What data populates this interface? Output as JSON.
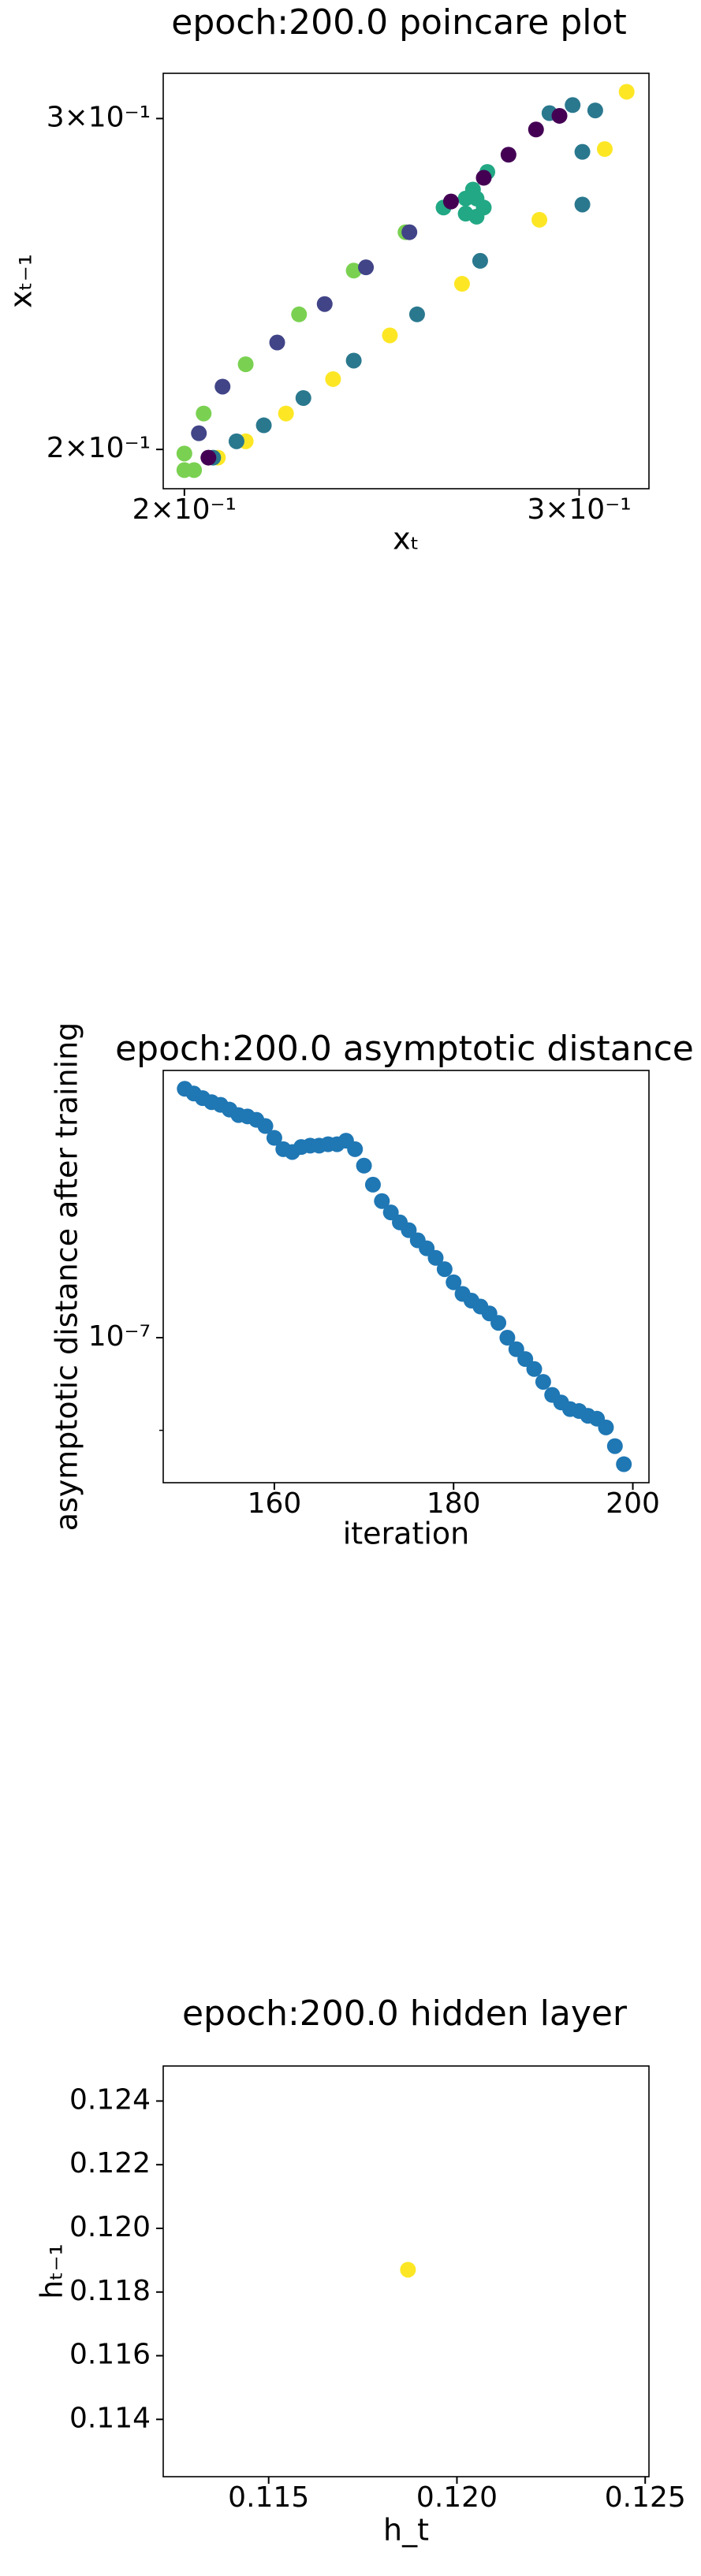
{
  "chart_data": [
    {
      "type": "scatter",
      "title": "epoch:200.0 poincare plot",
      "xlabel": "xₜ",
      "ylabel": "xₜ₋₁",
      "xscale": "log",
      "yscale": "log",
      "xlim": [
        0.1957,
        0.3223
      ],
      "ylim": [
        0.1906,
        0.3171
      ],
      "xticks": [
        {
          "value": 0.2,
          "label": "2×10⁻¹"
        },
        {
          "value": 0.3,
          "label": "3×10⁻¹"
        }
      ],
      "yticks": [
        {
          "value": 0.2,
          "label": "2×10⁻¹"
        },
        {
          "value": 0.3,
          "label": "3×10⁻¹"
        }
      ],
      "series": [
        {
          "color": "#fde725",
          "x": [
            0.315,
            0.308,
            0.288,
            0.266,
            0.247,
            0.233,
            0.222,
            0.213,
            0.207
          ],
          "values": [
            0.31,
            0.289,
            0.265,
            0.245,
            0.23,
            0.218,
            0.209,
            0.202,
            0.198
          ]
        },
        {
          "color": "#7ad151",
          "x": [
            0.202,
            0.2,
            0.2,
            0.204,
            0.213,
            0.225,
            0.238,
            0.251
          ],
          "values": [
            0.195,
            0.195,
            0.199,
            0.209,
            0.222,
            0.236,
            0.249,
            0.261
          ]
        },
        {
          "color": "#22a884",
          "x": [
            0.261,
            0.267,
            0.27,
            0.272,
            0.267,
            0.27,
            0.273,
            0.269
          ],
          "values": [
            0.269,
            0.272,
            0.272,
            0.269,
            0.267,
            0.266,
            0.281,
            0.275
          ]
        },
        {
          "color": "#2a788e",
          "x": [
            0.271,
            0.254,
            0.238,
            0.226,
            0.217,
            0.211,
            0.206,
            0.301,
            0.301,
            0.305,
            0.298,
            0.291
          ],
          "values": [
            0.252,
            0.236,
            0.223,
            0.213,
            0.206,
            0.202,
            0.198,
            0.288,
            0.27,
            0.303,
            0.305,
            0.302
          ]
        },
        {
          "color": "#414487",
          "x": [
            0.252,
            0.241,
            0.231,
            0.22,
            0.208,
            0.203
          ],
          "values": [
            0.261,
            0.25,
            0.239,
            0.228,
            0.216,
            0.204
          ]
        },
        {
          "color": "#440154",
          "x": [
            0.205,
            0.294,
            0.287,
            0.279,
            0.272,
            0.263
          ],
          "values": [
            0.198,
            0.301,
            0.296,
            0.287,
            0.279,
            0.271
          ]
        }
      ]
    },
    {
      "type": "scatter",
      "title": "epoch:200.0 asymptotic distance",
      "xlabel": "iteration",
      "ylabel": "asymptotic distance after training",
      "yscale": "log",
      "xlim": [
        147.6,
        201.8
      ],
      "ylim": [
        8.48e-08,
        1.355e-07
      ],
      "xticks": [
        160,
        180,
        200
      ],
      "yticks": [
        {
          "value": 1e-07,
          "label": "10⁻⁷"
        }
      ],
      "yminorticks": [
        9e-08
      ],
      "x": [
        150,
        151,
        152,
        153,
        154,
        155,
        156,
        157,
        158,
        159,
        160,
        161,
        162,
        163,
        164,
        165,
        166,
        167,
        168,
        169,
        170,
        171,
        172,
        173,
        174,
        175,
        176,
        177,
        178,
        179,
        180,
        181,
        182,
        183,
        184,
        185,
        186,
        187,
        188,
        189,
        190,
        191,
        192,
        193,
        194,
        195,
        196,
        197,
        198,
        199
      ],
      "series": [
        {
          "color": "#1f77b4",
          "values": [
            1.327e-07,
            1.32e-07,
            1.313e-07,
            1.307e-07,
            1.303e-07,
            1.296e-07,
            1.288e-07,
            1.286e-07,
            1.281e-07,
            1.272e-07,
            1.255e-07,
            1.239e-07,
            1.235e-07,
            1.242e-07,
            1.244e-07,
            1.244e-07,
            1.246e-07,
            1.246e-07,
            1.251e-07,
            1.239e-07,
            1.216e-07,
            1.19e-07,
            1.168e-07,
            1.153e-07,
            1.14e-07,
            1.13e-07,
            1.117e-07,
            1.107e-07,
            1.095e-07,
            1.081e-07,
            1.065e-07,
            1.051e-07,
            1.043e-07,
            1.036e-07,
            1.028e-07,
            1.017e-07,
            1e-07,
            9.87e-08,
            9.76e-08,
            9.65e-08,
            9.51e-08,
            9.37e-08,
            9.29e-08,
            9.22e-08,
            9.2e-08,
            9.15e-08,
            9.12e-08,
            9.03e-08,
            8.84e-08,
            8.66e-08
          ]
        }
      ]
    },
    {
      "type": "scatter",
      "title": "epoch:200.0 hidden layer",
      "xlabel": "h_t",
      "ylabel": "hₜ₋₁",
      "xlim": [
        0.1122,
        0.1251
      ],
      "ylim": [
        0.1122,
        0.1251
      ],
      "xticks": [
        0.115,
        {
          "value": 0.12,
          "label": "0.120"
        },
        0.125
      ],
      "yticks": [
        0.114,
        0.116,
        0.118,
        {
          "value": 0.12,
          "label": "0.120"
        },
        0.122,
        0.124
      ],
      "series": [
        {
          "color": "#fde725",
          "x": [
            0.1187
          ],
          "values": [
            0.1187
          ]
        }
      ]
    }
  ]
}
